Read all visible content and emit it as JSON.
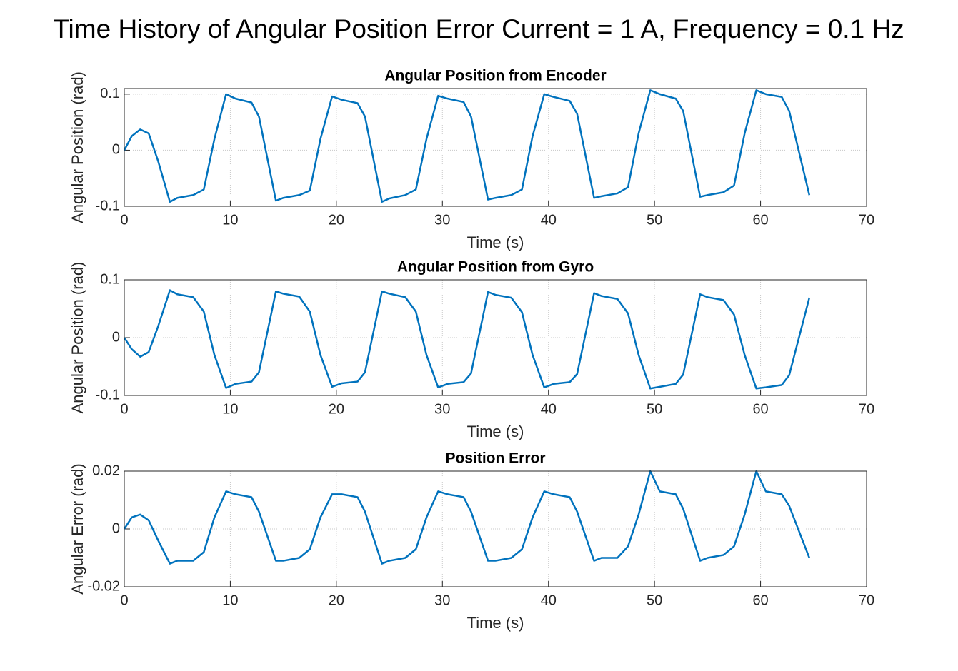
{
  "title": "Time History of Angular Position Error Current = 1 A, Frequency = 0.1 Hz",
  "chart_data": [
    {
      "type": "line",
      "title": "Angular Position from Encoder",
      "xlabel": "Time (s)",
      "ylabel": "Angular Position (rad)",
      "color": "#0072BD",
      "grid": true,
      "xlim": [
        0,
        70
      ],
      "xticks": [
        0,
        10,
        20,
        30,
        40,
        50,
        60,
        70
      ],
      "ylim": [
        -0.1,
        0.11
      ],
      "yticks": [
        -0.1,
        0,
        0.1
      ],
      "x": [
        0,
        0.7,
        1.5,
        2.3,
        3.2,
        4.3,
        5.0,
        6.5,
        7.5,
        8.5,
        9.6,
        10.5,
        12.0,
        12.7,
        14.3,
        15.0,
        16.5,
        17.5,
        18.5,
        19.6,
        20.5,
        22.0,
        22.7,
        24.3,
        25.0,
        26.5,
        27.5,
        28.5,
        29.6,
        30.5,
        32.0,
        32.7,
        34.3,
        35.0,
        36.5,
        37.5,
        38.5,
        39.6,
        40.5,
        42.0,
        42.7,
        44.3,
        45.0,
        46.5,
        47.5,
        48.5,
        49.6,
        50.5,
        52.0,
        52.7,
        54.3,
        55.0,
        56.5,
        57.5,
        58.5,
        59.6,
        60.5,
        62.0,
        62.7,
        64.6
      ],
      "values": [
        0,
        0.025,
        0.037,
        0.03,
        -0.02,
        -0.092,
        -0.085,
        -0.08,
        -0.07,
        0.02,
        0.1,
        0.092,
        0.085,
        0.06,
        -0.09,
        -0.085,
        -0.08,
        -0.072,
        0.02,
        0.096,
        0.09,
        0.084,
        0.06,
        -0.092,
        -0.086,
        -0.08,
        -0.07,
        0.02,
        0.097,
        0.092,
        0.086,
        0.06,
        -0.088,
        -0.085,
        -0.08,
        -0.07,
        0.025,
        0.1,
        0.095,
        0.088,
        0.065,
        -0.085,
        -0.082,
        -0.077,
        -0.066,
        0.03,
        0.107,
        0.1,
        0.092,
        0.07,
        -0.083,
        -0.08,
        -0.075,
        -0.063,
        0.03,
        0.107,
        0.1,
        0.095,
        0.07,
        -0.08
      ]
    },
    {
      "type": "line",
      "title": "Angular Position from Gyro",
      "xlabel": "Time (s)",
      "ylabel": "Angular Position (rad)",
      "color": "#0072BD",
      "grid": true,
      "xlim": [
        0,
        70
      ],
      "xticks": [
        0,
        10,
        20,
        30,
        40,
        50,
        60,
        70
      ],
      "ylim": [
        -0.1,
        0.1
      ],
      "yticks": [
        -0.1,
        0,
        0.1
      ],
      "x": [
        0,
        0.7,
        1.5,
        2.3,
        3.2,
        4.3,
        5.0,
        6.5,
        7.5,
        8.5,
        9.6,
        10.5,
        12.0,
        12.7,
        14.3,
        15.0,
        16.5,
        17.5,
        18.5,
        19.6,
        20.5,
        22.0,
        22.7,
        24.3,
        25.0,
        26.5,
        27.5,
        28.5,
        29.6,
        30.5,
        32.0,
        32.7,
        34.3,
        35.0,
        36.5,
        37.5,
        38.5,
        39.6,
        40.5,
        42.0,
        42.7,
        44.3,
        45.0,
        46.5,
        47.5,
        48.5,
        49.6,
        50.5,
        52.0,
        52.7,
        54.3,
        55.0,
        56.5,
        57.5,
        58.5,
        59.6,
        60.5,
        62.0,
        62.7,
        64.6
      ],
      "values": [
        0,
        -0.02,
        -0.033,
        -0.025,
        0.02,
        0.082,
        0.075,
        0.07,
        0.045,
        -0.03,
        -0.087,
        -0.08,
        -0.076,
        -0.06,
        0.08,
        0.076,
        0.071,
        0.045,
        -0.03,
        -0.085,
        -0.079,
        -0.076,
        -0.06,
        0.08,
        0.076,
        0.07,
        0.045,
        -0.03,
        -0.086,
        -0.08,
        -0.077,
        -0.062,
        0.079,
        0.074,
        0.069,
        0.044,
        -0.03,
        -0.086,
        -0.08,
        -0.077,
        -0.063,
        0.077,
        0.072,
        0.067,
        0.042,
        -0.03,
        -0.088,
        -0.085,
        -0.08,
        -0.064,
        0.075,
        0.07,
        0.065,
        0.04,
        -0.03,
        -0.088,
        -0.086,
        -0.082,
        -0.065,
        0.069
      ]
    },
    {
      "type": "line",
      "title": "Position Error",
      "xlabel": "Time (s)",
      "ylabel": "Angular Error (rad)",
      "color": "#0072BD",
      "grid": true,
      "xlim": [
        0,
        70
      ],
      "xticks": [
        0,
        10,
        20,
        30,
        40,
        50,
        60,
        70
      ],
      "ylim": [
        -0.02,
        0.02
      ],
      "yticks": [
        -0.02,
        0,
        0.02
      ],
      "x": [
        0,
        0.7,
        1.5,
        2.3,
        3.2,
        4.3,
        5.0,
        6.5,
        7.5,
        8.5,
        9.6,
        10.5,
        12.0,
        12.7,
        14.3,
        15.0,
        16.5,
        17.5,
        18.5,
        19.6,
        20.5,
        22.0,
        22.7,
        24.3,
        25.0,
        26.5,
        27.5,
        28.5,
        29.6,
        30.5,
        32.0,
        32.7,
        34.3,
        35.0,
        36.5,
        37.5,
        38.5,
        39.6,
        40.5,
        42.0,
        42.7,
        44.3,
        45.0,
        46.5,
        47.5,
        48.5,
        49.6,
        50.5,
        52.0,
        52.7,
        54.3,
        55.0,
        56.5,
        57.5,
        58.5,
        59.6,
        60.5,
        62.0,
        62.7,
        64.6
      ],
      "values": [
        0,
        0.004,
        0.005,
        0.003,
        -0.004,
        -0.012,
        -0.011,
        -0.011,
        -0.008,
        0.004,
        0.013,
        0.012,
        0.011,
        0.006,
        -0.011,
        -0.011,
        -0.01,
        -0.007,
        0.004,
        0.012,
        0.012,
        0.011,
        0.006,
        -0.012,
        -0.011,
        -0.01,
        -0.007,
        0.004,
        0.013,
        0.012,
        0.011,
        0.006,
        -0.011,
        -0.011,
        -0.01,
        -0.007,
        0.004,
        0.013,
        0.012,
        0.011,
        0.006,
        -0.011,
        -0.01,
        -0.01,
        -0.006,
        0.005,
        0.02,
        0.013,
        0.012,
        0.007,
        -0.011,
        -0.01,
        -0.009,
        -0.006,
        0.005,
        0.02,
        0.013,
        0.012,
        0.008,
        -0.01
      ]
    }
  ]
}
